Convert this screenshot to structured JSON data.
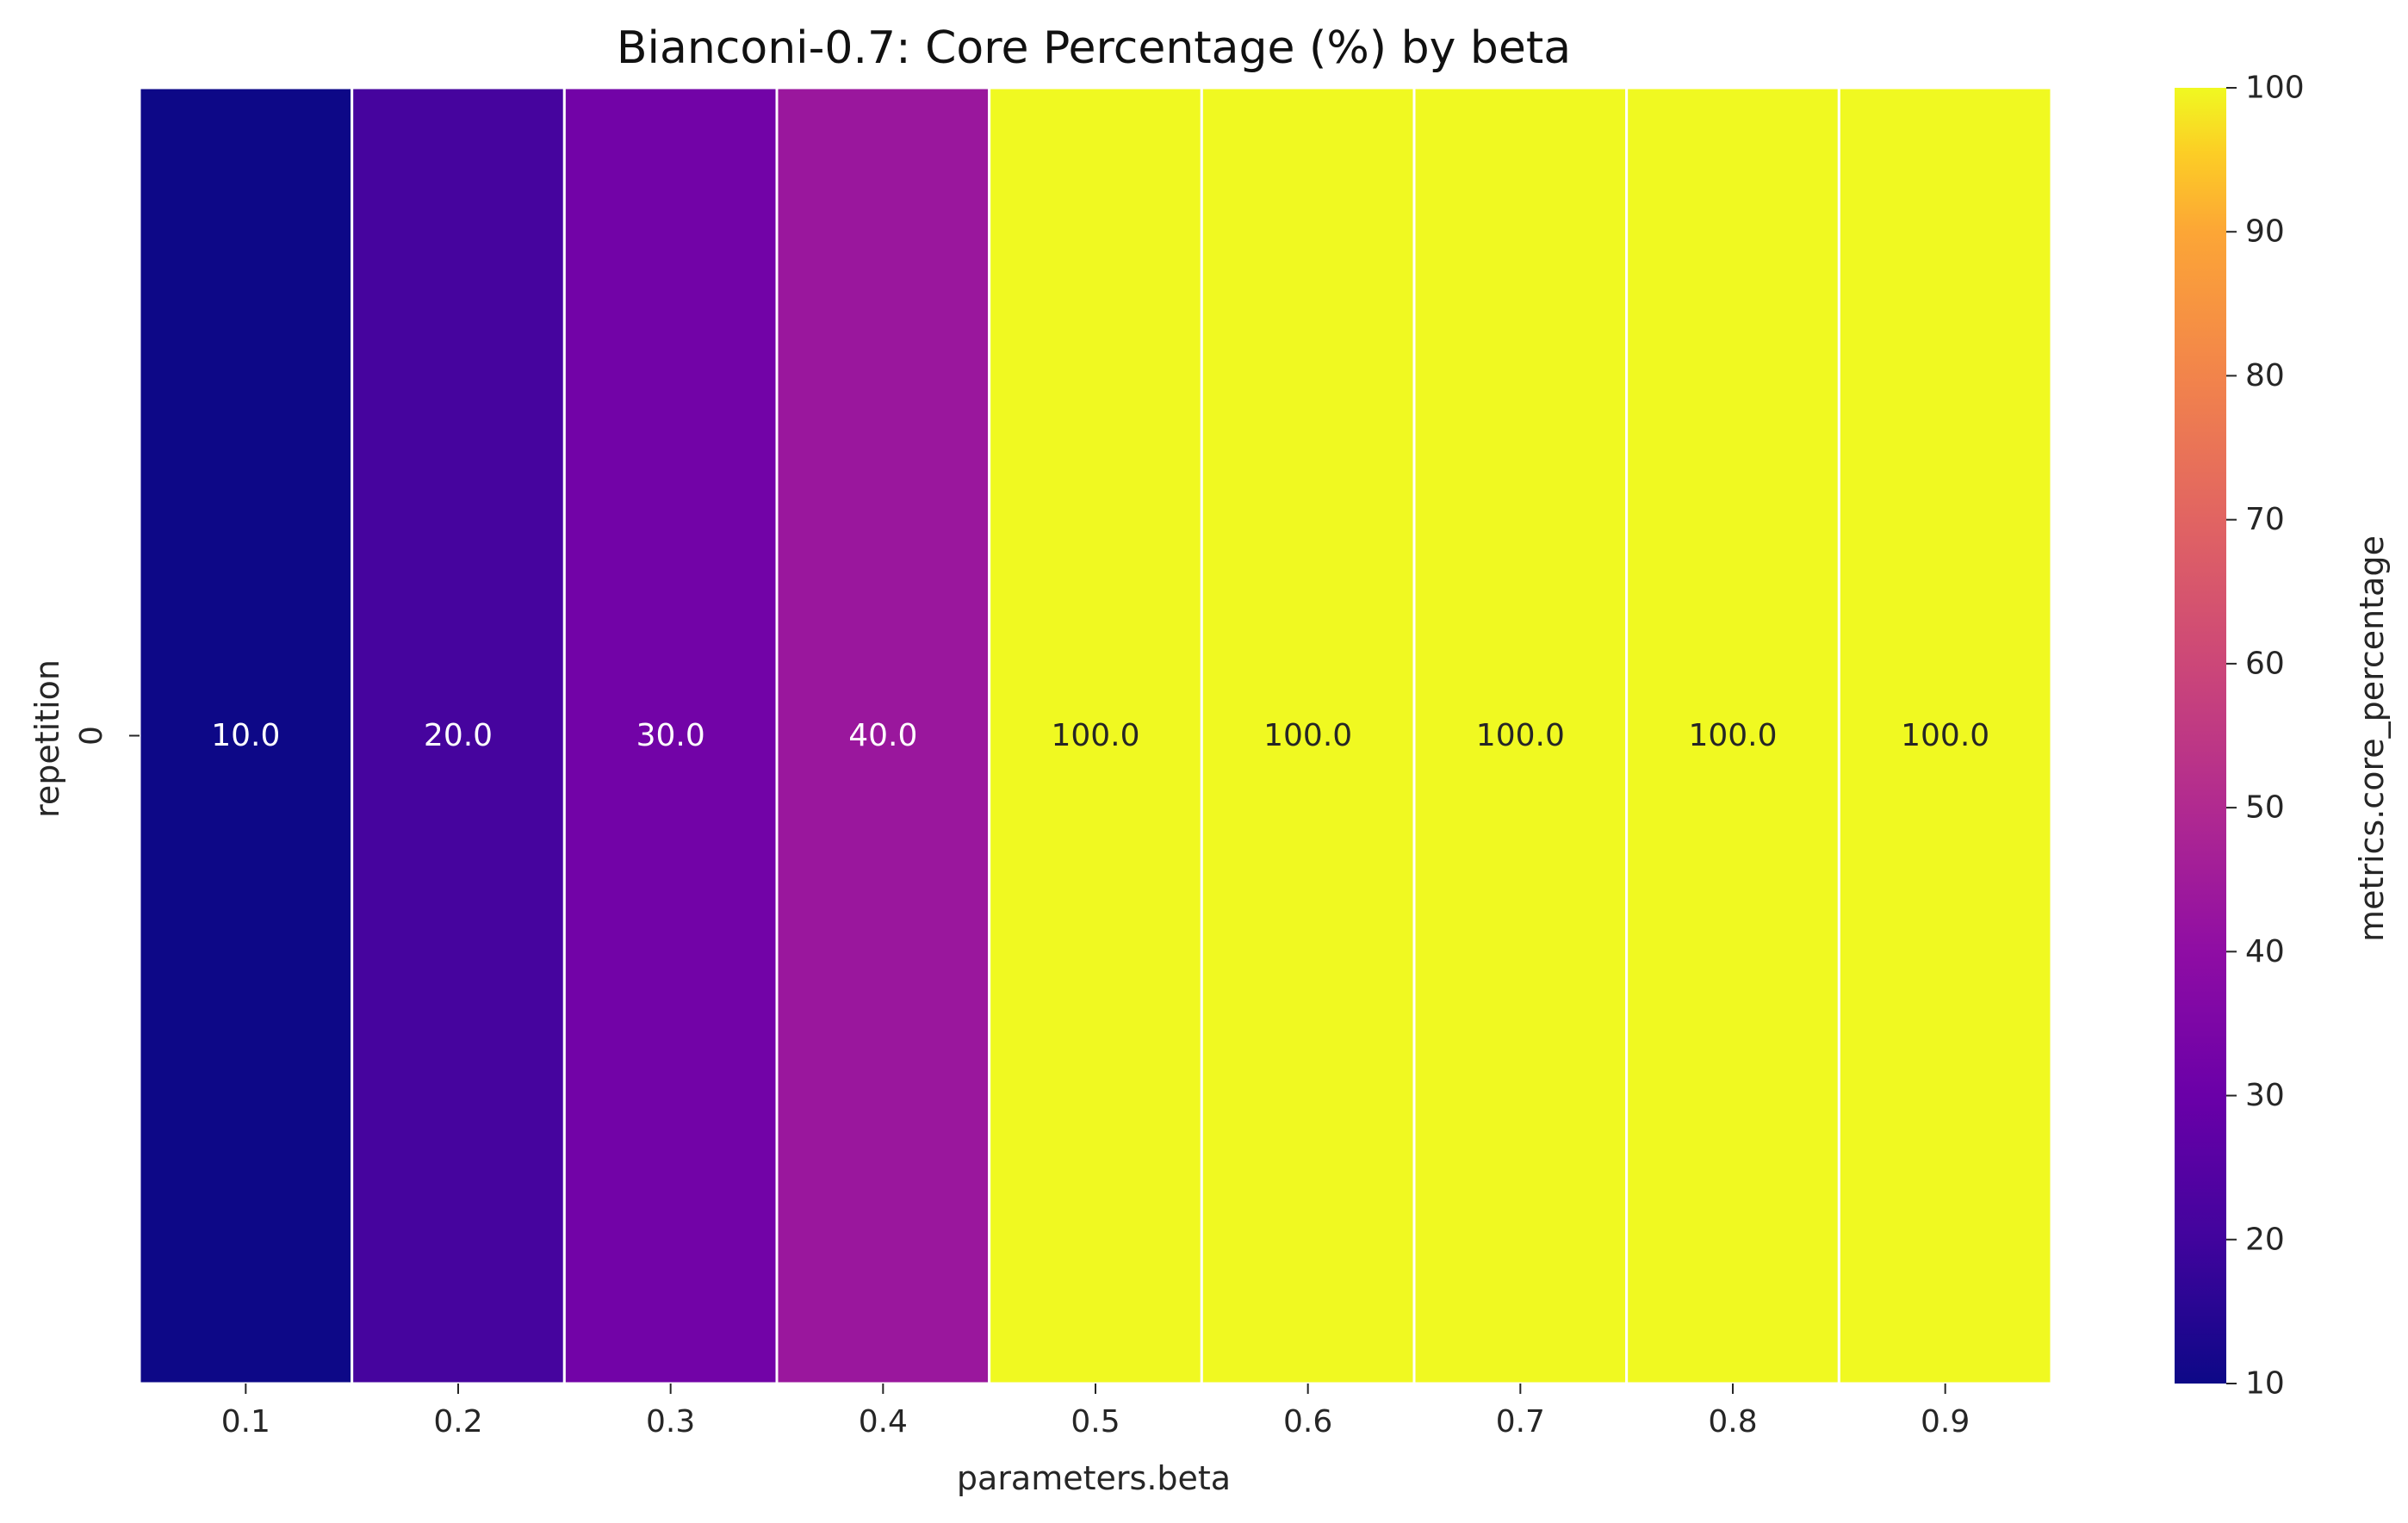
{
  "chart_data": {
    "type": "heatmap",
    "title": "Bianconi-0.7: Core Percentage (%) by beta",
    "xlabel": "parameters.beta",
    "ylabel": "repetition",
    "x_categories": [
      "0.1",
      "0.2",
      "0.3",
      "0.4",
      "0.5",
      "0.6",
      "0.7",
      "0.8",
      "0.9"
    ],
    "y_categories": [
      "0"
    ],
    "values": [
      [
        10.0,
        20.0,
        30.0,
        40.0,
        100.0,
        100.0,
        100.0,
        100.0,
        100.0
      ]
    ],
    "cell_labels": [
      [
        "10.0",
        "20.0",
        "30.0",
        "40.0",
        "100.0",
        "100.0",
        "100.0",
        "100.0",
        "100.0"
      ]
    ],
    "colormap": "plasma",
    "colorbar": {
      "label": "metrics.core_percentage",
      "range": [
        10,
        100
      ],
      "ticks": [
        "10",
        "20",
        "30",
        "40",
        "50",
        "60",
        "70",
        "80",
        "90",
        "100"
      ]
    },
    "colors": {
      "label_dark": "#262626",
      "label_light": "#ffffff",
      "cell_border": "#ffffff"
    }
  }
}
